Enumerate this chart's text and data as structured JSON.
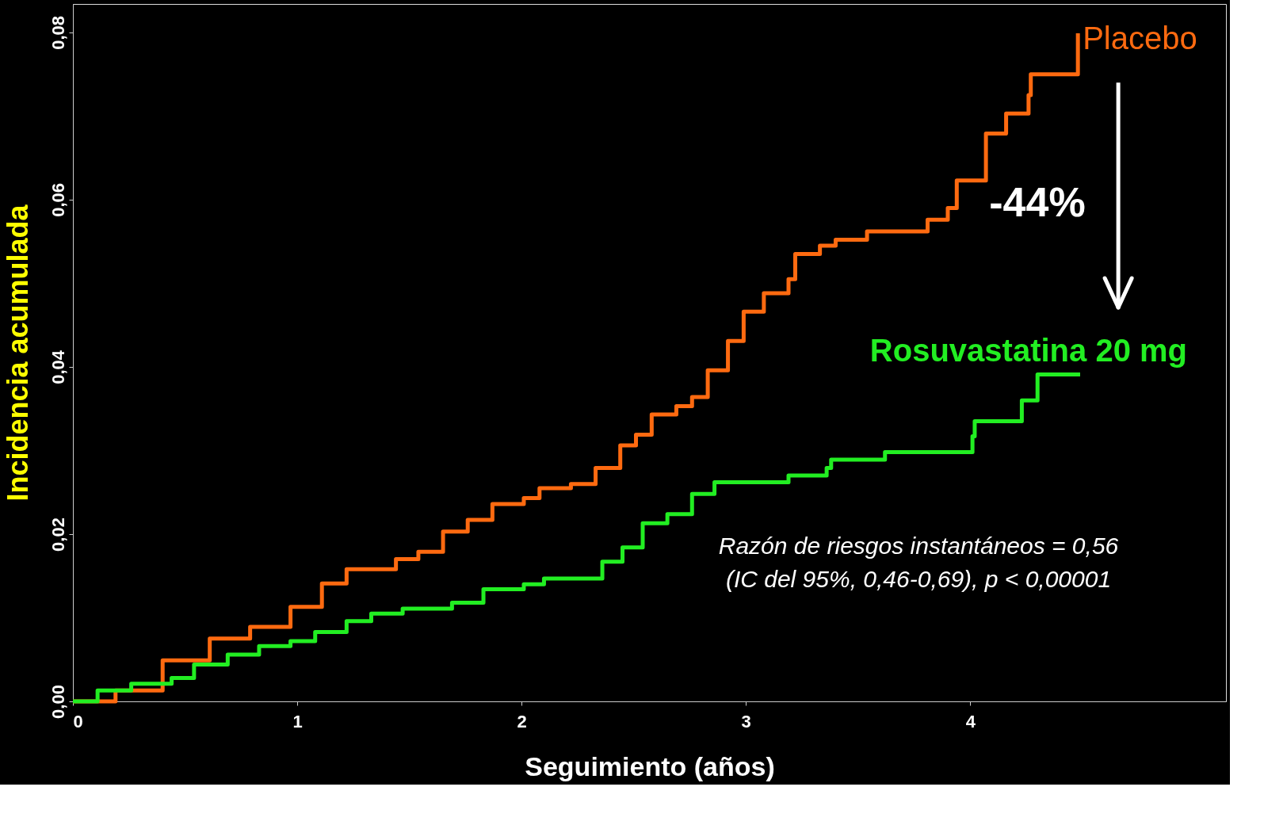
{
  "chart_data": {
    "type": "step",
    "xlabel": "Seguimiento (años)",
    "ylabel": "Incidencia acumulada",
    "xlim": [
      0,
      5.14
    ],
    "ylim": [
      0,
      0.0834
    ],
    "xticks": [
      0,
      1,
      2,
      3,
      4
    ],
    "yticks": [
      {
        "value": 0,
        "label": "0,00"
      },
      {
        "value": 0.02,
        "label": "0,02"
      },
      {
        "value": 0.04,
        "label": "0,04"
      },
      {
        "value": 0.06,
        "label": "0,06"
      },
      {
        "value": 0.08,
        "label": "0,08"
      }
    ],
    "grid": false,
    "line_style": "solid",
    "marker": "none",
    "series": [
      {
        "name": "Placebo",
        "color": "#ff6a10",
        "x": [
          0,
          0.19,
          0.4,
          0.61,
          0.79,
          0.97,
          1.11,
          1.22,
          1.33,
          1.44,
          1.54,
          1.65,
          1.76,
          1.87,
          2.01,
          2.08,
          2.22,
          2.33,
          2.44,
          2.51,
          2.58,
          2.69,
          2.76,
          2.83,
          2.92,
          2.99,
          3.08,
          3.19,
          3.22,
          3.33,
          3.4,
          3.54,
          3.81,
          3.9,
          3.94,
          4.05,
          4.07,
          4.16,
          4.26,
          4.27,
          4.47,
          4.48
        ],
        "values": [
          0,
          0.0013,
          0.0049,
          0.0075,
          0.0089,
          0.0113,
          0.0141,
          0.0158,
          0.0158,
          0.017,
          0.0179,
          0.0203,
          0.0217,
          0.0236,
          0.0243,
          0.0255,
          0.026,
          0.0279,
          0.0306,
          0.0319,
          0.0343,
          0.0353,
          0.0364,
          0.0396,
          0.0431,
          0.0466,
          0.0488,
          0.0505,
          0.0535,
          0.0545,
          0.0552,
          0.0562,
          0.0576,
          0.059,
          0.0623,
          0.0623,
          0.0679,
          0.0703,
          0.0725,
          0.075,
          0.075,
          0.0799
        ]
      },
      {
        "name": "Rosuvastatina 20 mg",
        "color": "#22ee22",
        "x": [
          0,
          0.11,
          0.26,
          0.44,
          0.54,
          0.69,
          0.83,
          0.97,
          1.08,
          1.22,
          1.33,
          1.47,
          1.69,
          1.83,
          1.94,
          2.01,
          2.1,
          2.28,
          2.36,
          2.45,
          2.54,
          2.65,
          2.76,
          2.86,
          3.17,
          3.19,
          3.36,
          3.38,
          3.61,
          3.62,
          3.99,
          4.01,
          4.02,
          4.22,
          4.23,
          4.3,
          4.49
        ],
        "values": [
          0,
          0.0013,
          0.0021,
          0.0028,
          0.0044,
          0.0056,
          0.0066,
          0.0072,
          0.0083,
          0.0096,
          0.0105,
          0.0111,
          0.0118,
          0.0134,
          0.0134,
          0.014,
          0.0147,
          0.0147,
          0.0167,
          0.0184,
          0.0213,
          0.0224,
          0.0248,
          0.0262,
          0.0262,
          0.027,
          0.0279,
          0.0289,
          0.0289,
          0.0298,
          0.0298,
          0.0317,
          0.0335,
          0.0335,
          0.036,
          0.0391,
          0.0391
        ]
      }
    ],
    "annotations": [
      "-44%",
      "Razón de riesgos instantáneos = 0,56",
      "(IC del 95%, 0,46-0,69), p < 0,00001"
    ]
  }
}
